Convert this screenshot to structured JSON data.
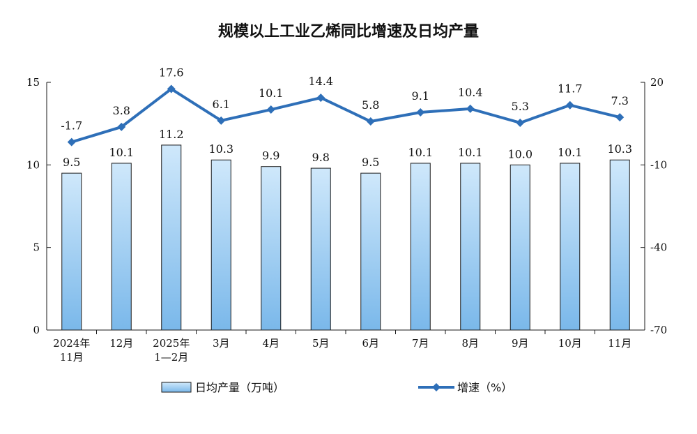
{
  "chart_data": {
    "type": "bar",
    "title": "规模以上工业乙烯同比增速及日均产量",
    "categories": [
      [
        "2024年",
        "11月"
      ],
      [
        "12月"
      ],
      [
        "2025年",
        "1—2月"
      ],
      [
        "3月"
      ],
      [
        "4月"
      ],
      [
        "5月"
      ],
      [
        "6月"
      ],
      [
        "7月"
      ],
      [
        "8月"
      ],
      [
        "9月"
      ],
      [
        "10月"
      ],
      [
        "11月"
      ]
    ],
    "series": [
      {
        "name": "日均产量（万吨）",
        "type": "bar",
        "axis": "left",
        "values": [
          9.5,
          10.1,
          11.2,
          10.3,
          9.9,
          9.8,
          9.5,
          10.1,
          10.1,
          10.0,
          10.1,
          10.3
        ],
        "labels": [
          "9.5",
          "10.1",
          "11.2",
          "10.3",
          "9.9",
          "9.8",
          "9.5",
          "10.1",
          "10.1",
          "10.0",
          "10.1",
          "10.3"
        ]
      },
      {
        "name": "增速（%）",
        "type": "line",
        "axis": "right",
        "values": [
          -1.7,
          3.8,
          17.6,
          6.1,
          10.1,
          14.4,
          5.8,
          9.1,
          10.4,
          5.3,
          11.7,
          7.3
        ],
        "labels": [
          "-1.7",
          "3.8",
          "17.6",
          "6.1",
          "10.1",
          "14.4",
          "5.8",
          "9.1",
          "10.4",
          "5.3",
          "11.7",
          "7.3"
        ]
      }
    ],
    "y_left": {
      "ylim": [
        0,
        15
      ],
      "ticks": [
        "0",
        "5",
        "10",
        "15"
      ],
      "tick_values": [
        0,
        5,
        10,
        15
      ]
    },
    "y_right": {
      "ylim": [
        -70,
        20
      ],
      "ticks": [
        "-70",
        "-40",
        "-10",
        "20"
      ],
      "tick_values": [
        -70,
        -40,
        -10,
        20
      ]
    },
    "grid": false,
    "legend_position": "bottom",
    "colors": {
      "bar_fill_top": "#cfe8fb",
      "bar_fill_bottom": "#7ab8ea",
      "bar_stroke": "#1a1a1a",
      "line": "#2e6fb8",
      "axis": "#1a1a1a"
    }
  }
}
